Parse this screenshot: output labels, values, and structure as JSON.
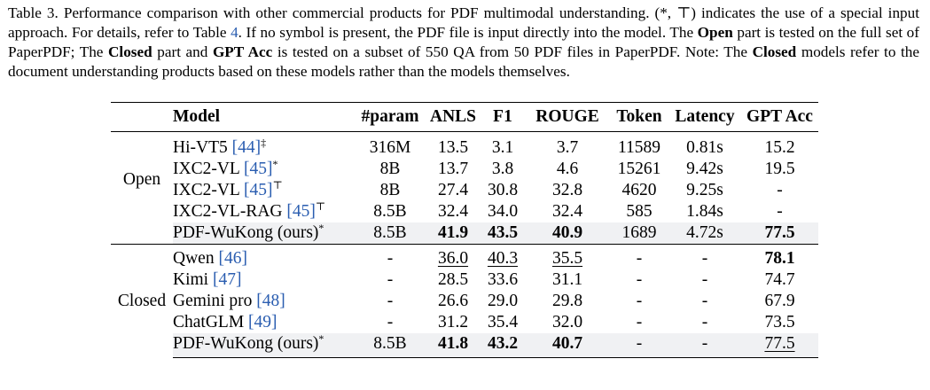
{
  "caption": {
    "label": "Table 3.",
    "p1": " Performance comparison with other commercial products for PDF multimodal understanding. (*, ",
    "symbol": "⊤",
    "p2": ") indicates the use of a special input approach. For details, refer to Table ",
    "table_ref": "4",
    "p3": ". If no symbol is present, the PDF file is input directly into the model. The ",
    "open_bold": "Open",
    "p4": " part is tested on the full set of PaperPDF; The ",
    "closed_bold": "Closed",
    "p5": " part and ",
    "gptacc_bold": "GPT Acc",
    "p6": " is tested on a subset of 550 QA from 50 PDF files in PaperPDF. Note: The ",
    "closed_bold2": "Closed",
    "p7": " models refer to the document understanding products based on these models rather than the models themselves."
  },
  "table": {
    "headers": [
      "",
      "Model",
      "#param",
      "ANLS",
      "F1",
      "ROUGE",
      "Token",
      "Latency",
      "GPT Acc"
    ],
    "groups": {
      "open": "Open",
      "closed": "Closed"
    },
    "open_rows": [
      {
        "name": "Hi-VT5 ",
        "ref": "[44]",
        "sym": "‡",
        "param": "316M",
        "anls": "13.5",
        "f1": "3.1",
        "rouge": "3.7",
        "token": "11589",
        "latency": "0.81s",
        "gpt": "15.2"
      },
      {
        "name": "IXC2-VL ",
        "ref": "[45]",
        "sym": "*",
        "param": "8B",
        "anls": "13.7",
        "f1": "3.8",
        "rouge": "4.6",
        "token": "15261",
        "latency": "9.42s",
        "gpt": "19.5"
      },
      {
        "name": "IXC2-VL ",
        "ref": "[45]",
        "sym": "⊤",
        "param": "8B",
        "anls": "27.4",
        "f1": "30.8",
        "rouge": "32.8",
        "token": "4620",
        "latency": "9.25s",
        "gpt": "-"
      },
      {
        "name": "IXC2-VL-RAG ",
        "ref": "[45]",
        "sym": "⊤",
        "param": "8.5B",
        "anls": "32.4",
        "f1": "34.0",
        "rouge": "32.4",
        "token": "585",
        "latency": "1.84s",
        "gpt": "-"
      },
      {
        "name": "PDF-WuKong (ours)",
        "ref": "",
        "sym": "*",
        "param": "8.5B",
        "anls": "41.9",
        "f1": "43.5",
        "rouge": "40.9",
        "token": "1689",
        "latency": "4.72s",
        "gpt": "77.5"
      }
    ],
    "closed_rows": [
      {
        "name": "Qwen ",
        "ref": "[46]",
        "sym": "",
        "param": "-",
        "anls": "36.0",
        "f1": "40.3",
        "rouge": "35.5",
        "token": "-",
        "latency": "-",
        "gpt": "78.1"
      },
      {
        "name": "Kimi ",
        "ref": "[47]",
        "sym": "",
        "param": "-",
        "anls": "28.5",
        "f1": "33.6",
        "rouge": "31.1",
        "token": "-",
        "latency": "-",
        "gpt": "74.7"
      },
      {
        "name": "Gemini pro ",
        "ref": "[48]",
        "sym": "",
        "param": "-",
        "anls": "26.6",
        "f1": "29.0",
        "rouge": "29.8",
        "token": "-",
        "latency": "-",
        "gpt": "67.9"
      },
      {
        "name": "ChatGLM ",
        "ref": "[49]",
        "sym": "",
        "param": "-",
        "anls": "31.2",
        "f1": "35.4",
        "rouge": "32.0",
        "token": "-",
        "latency": "-",
        "gpt": "73.5"
      },
      {
        "name": "PDF-WuKong (ours)",
        "ref": "",
        "sym": "*",
        "param": "8.5B",
        "anls": "41.8",
        "f1": "43.2",
        "rouge": "40.7",
        "token": "-",
        "latency": "-",
        "gpt": "77.5"
      }
    ]
  }
}
